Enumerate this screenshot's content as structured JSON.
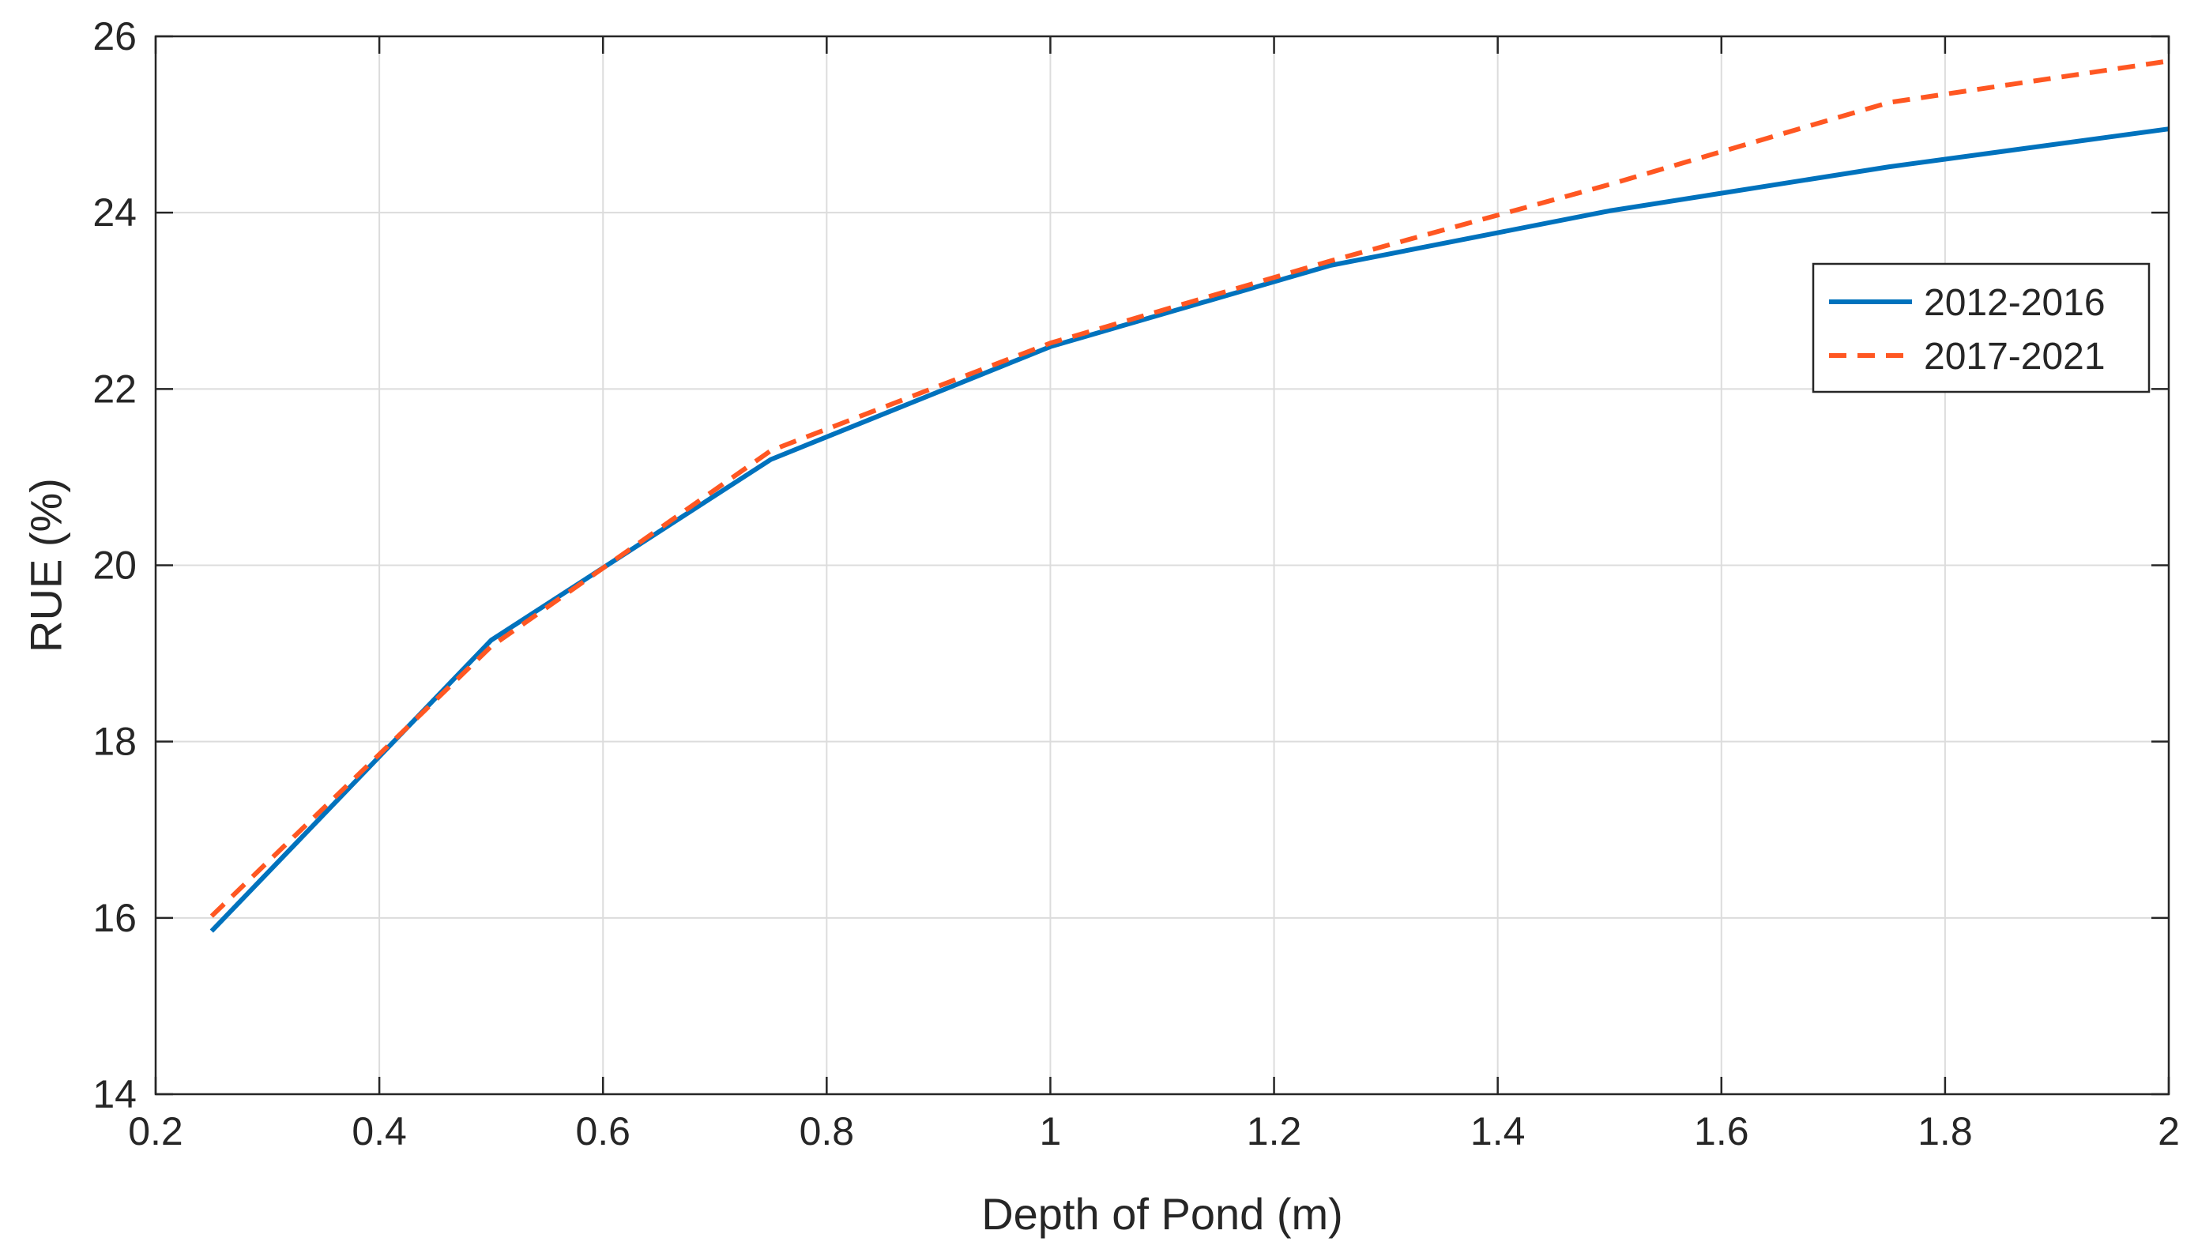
{
  "chart_data": {
    "type": "line",
    "title": "",
    "xlabel": "Depth of Pond (m)",
    "ylabel": "RUE (%)",
    "xlim": [
      0.2,
      2
    ],
    "ylim": [
      14,
      26
    ],
    "xticks": [
      0.2,
      0.4,
      0.6,
      0.8,
      1,
      1.2,
      1.4,
      1.6,
      1.8,
      2
    ],
    "xtick_labels": [
      "0.2",
      "0.4",
      "0.6",
      "0.8",
      "1",
      "1.2",
      "1.4",
      "1.6",
      "1.8",
      "2"
    ],
    "yticks": [
      14,
      16,
      18,
      20,
      22,
      24,
      26
    ],
    "ytick_labels": [
      "14",
      "16",
      "18",
      "20",
      "22",
      "24",
      "26"
    ],
    "grid": true,
    "legend_position": "right, upper",
    "x": [
      0.25,
      0.5,
      0.75,
      1,
      1.25,
      1.5,
      1.75,
      2
    ],
    "series": [
      {
        "name": "2012-2016",
        "values": [
          15.85,
          19.15,
          21.2,
          22.48,
          23.4,
          24.02,
          24.52,
          24.95
        ],
        "color": "#0072BD",
        "style": "solid"
      },
      {
        "name": "2017-2021",
        "values": [
          16.02,
          19.08,
          21.3,
          22.52,
          23.45,
          24.32,
          25.25,
          25.72
        ],
        "color": "#FF5722",
        "style": "dashed"
      }
    ]
  }
}
